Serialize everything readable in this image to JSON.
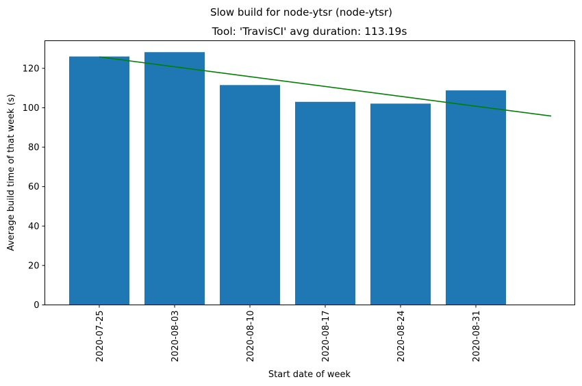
{
  "chart_data": {
    "type": "bar",
    "suptitle": "Slow build for node-ytsr (node-ytsr)",
    "title": "Tool: 'TravisCI' avg duration: 113.19s",
    "xlabel": "Start date of week",
    "ylabel": "Average build time of that week (s)",
    "categories": [
      "2020-07-25",
      "2020-08-03",
      "2020-08-10",
      "2020-08-17",
      "2020-08-24",
      "2020-08-31"
    ],
    "values": [
      126.0,
      128.2,
      111.5,
      103.0,
      102.1,
      108.8
    ],
    "ylim": [
      0,
      134
    ],
    "yticks": [
      0,
      20,
      40,
      60,
      80,
      100,
      120
    ],
    "bar_color": "#1f77b4",
    "trend": {
      "color": "#008000",
      "start": [
        0,
        125.8
      ],
      "end": [
        6,
        95.8
      ]
    },
    "grid": false,
    "legend": "none"
  }
}
